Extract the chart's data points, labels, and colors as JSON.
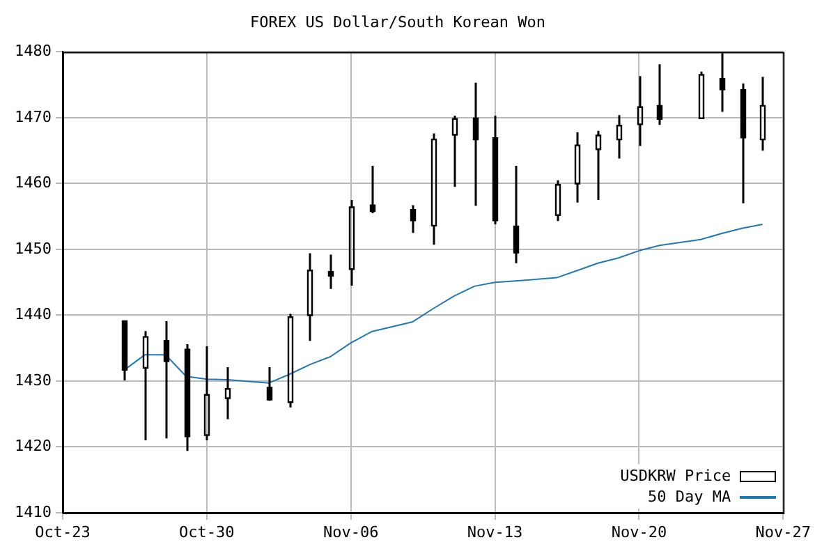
{
  "chart_data": {
    "type": "candlestick",
    "title": "FOREX US Dollar/South Korean Won",
    "x": [
      "--10-26",
      "--10-27",
      "--10-28",
      "--10-29",
      "--10-30",
      "--10-31",
      "--11-02",
      "--11-03",
      "--11-04",
      "--11-05",
      "--11-06",
      "--11-07",
      "--11-09",
      "--11-10",
      "--11-11",
      "--11-12",
      "--11-13",
      "--11-14",
      "--11-16",
      "--11-17",
      "--11-18",
      "--11-19",
      "--11-20",
      "--11-21",
      "--11-23",
      "--11-24",
      "--11-25",
      "--11-26"
    ],
    "series": [
      {
        "name": "USDKRW Price",
        "type": "candlestick",
        "color": "#000000",
        "ohlc": [
          [
            1439.1,
            1439.1,
            1430.1,
            1431.7
          ],
          [
            1432.0,
            1437.6,
            1421.0,
            1436.7
          ],
          [
            1436.1,
            1439.1,
            1421.3,
            1433.0
          ],
          [
            1434.8,
            1435.6,
            1419.4,
            1421.6
          ],
          [
            1421.8,
            1435.3,
            1421.0,
            1427.9
          ],
          [
            1427.4,
            1432.1,
            1424.2,
            1428.8
          ],
          [
            1429.0,
            1432.1,
            1427.0,
            1427.2
          ],
          [
            1426.8,
            1440.2,
            1426.0,
            1439.7
          ],
          [
            1440.0,
            1449.4,
            1436.1,
            1446.8
          ],
          [
            1446.6,
            1449.2,
            1444.0,
            1446.0
          ],
          [
            1447.0,
            1457.5,
            1444.5,
            1456.4
          ],
          [
            1456.7,
            1462.7,
            1455.5,
            1455.8
          ],
          [
            1456.0,
            1456.7,
            1452.5,
            1454.4
          ],
          [
            1453.6,
            1467.6,
            1450.7,
            1466.7
          ],
          [
            1467.4,
            1470.3,
            1459.5,
            1469.8
          ],
          [
            1469.9,
            1475.3,
            1456.6,
            1466.7
          ],
          [
            1466.9,
            1470.3,
            1453.8,
            1454.4
          ],
          [
            1453.5,
            1462.7,
            1447.9,
            1449.5
          ],
          [
            1455.2,
            1460.5,
            1454.3,
            1459.8
          ],
          [
            1460.0,
            1467.8,
            1457.1,
            1465.8
          ],
          [
            1465.2,
            1468.0,
            1457.5,
            1467.3
          ],
          [
            1466.7,
            1470.4,
            1463.8,
            1468.8
          ],
          [
            1469.0,
            1476.3,
            1465.7,
            1471.6
          ],
          [
            1471.8,
            1478.1,
            1468.9,
            1469.8
          ],
          [
            1469.9,
            1477.0,
            1469.9,
            1476.5
          ],
          [
            1475.9,
            1479.8,
            1470.9,
            1474.3
          ],
          [
            1474.2,
            1475.2,
            1457.0,
            1467.0
          ],
          [
            1466.7,
            1476.2,
            1465.0,
            1471.8
          ]
        ]
      },
      {
        "name": "50 Day MA",
        "type": "line",
        "color": "#1f77b4",
        "values": [
          1431.7,
          1434.0,
          1434.0,
          1430.7,
          1430.3,
          1430.2,
          1429.7,
          1431.0,
          1432.5,
          1433.7,
          1435.8,
          1437.5,
          1439.0,
          1441.0,
          1442.9,
          1444.4,
          1445.0,
          1445.2,
          1445.7,
          1446.8,
          1447.9,
          1448.7,
          1449.8,
          1450.6,
          1451.5,
          1452.4,
          1453.2,
          1453.8
        ]
      }
    ],
    "xlim": [
      "--10-23",
      "--11-27"
    ],
    "xticks": [
      {
        "value": "--10-23",
        "label": "Oct-23"
      },
      {
        "value": "--10-30",
        "label": "Oct-30"
      },
      {
        "value": "--11-06",
        "label": "Nov-06"
      },
      {
        "value": "--11-13",
        "label": "Nov-13"
      },
      {
        "value": "--11-20",
        "label": "Nov-20"
      },
      {
        "value": "--11-27",
        "label": "Nov-27"
      }
    ],
    "ylim": [
      1410,
      1480
    ],
    "yticks": [
      1410,
      1420,
      1430,
      1440,
      1450,
      1460,
      1470,
      1480
    ],
    "grid": true,
    "legend": "bottom right"
  }
}
